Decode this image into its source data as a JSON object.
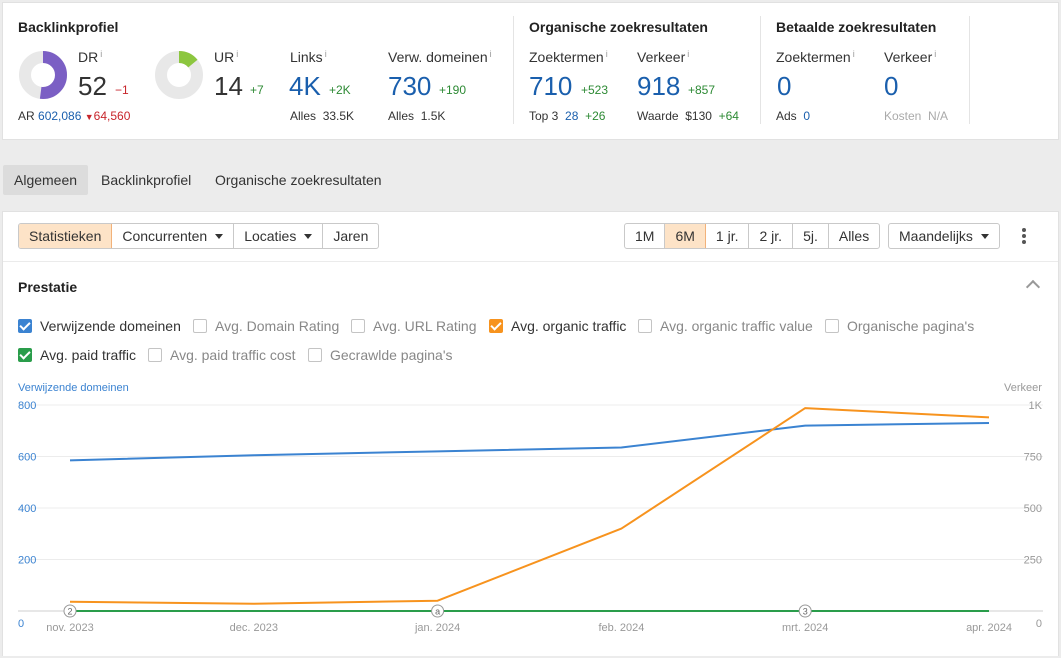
{
  "backlink": {
    "title": "Backlinkprofiel",
    "dr": {
      "label": "DR",
      "info": "i",
      "value": "52",
      "delta": "−1",
      "fraction": 0.52
    },
    "ar": {
      "label": "AR",
      "value": "602,086",
      "delta": "64,560"
    },
    "ur": {
      "label": "UR",
      "info": "i",
      "value": "14",
      "delta": "+7",
      "fraction": 0.14
    },
    "links": {
      "label": "Links",
      "info": "i",
      "value": "4K",
      "delta": "+2K",
      "sub_label": "Alles",
      "sub_value": "33.5K"
    },
    "domains": {
      "label": "Verw. domeinen",
      "info": "i",
      "value": "730",
      "delta": "+190",
      "sub_label": "Alles",
      "sub_value": "1.5K"
    }
  },
  "organic": {
    "title": "Organische zoekresultaten",
    "keywords": {
      "label": "Zoektermen",
      "info": "i",
      "value": "710",
      "delta": "+523",
      "sub_label": "Top 3",
      "sub_value": "28",
      "sub_delta": "+26"
    },
    "traffic": {
      "label": "Verkeer",
      "info": "i",
      "value": "918",
      "delta": "+857",
      "sub_label": "Waarde",
      "sub_value": "$130",
      "sub_delta": "+64"
    }
  },
  "paid": {
    "title": "Betaalde zoekresultaten",
    "keywords": {
      "label": "Zoektermen",
      "info": "i",
      "value": "0",
      "sub_label": "Ads",
      "sub_value": "0"
    },
    "traffic": {
      "label": "Verkeer",
      "info": "i",
      "value": "0",
      "sub_label": "Kosten",
      "sub_value": "N/A"
    }
  },
  "tabs": [
    "Algemeen",
    "Backlinkprofiel",
    "Organische zoekresultaten"
  ],
  "view_buttons": [
    "Statistieken",
    "Concurrenten",
    "Locaties",
    "Jaren"
  ],
  "range_buttons": [
    "1M",
    "6M",
    "1 jr.",
    "2 jr.",
    "5j.",
    "Alles"
  ],
  "interval": "Maandelijks",
  "section_title": "Prestatie",
  "checkboxes": {
    "ref_domains": "Verwijzende domeinen",
    "avg_dr": "Avg. Domain Rating",
    "avg_ur": "Avg. URL Rating",
    "avg_organic": "Avg. organic traffic",
    "avg_organic_value": "Avg. organic traffic value",
    "organic_pages": "Organische pagina's",
    "avg_paid": "Avg. paid traffic",
    "avg_paid_cost": "Avg. paid traffic cost",
    "crawled": "Gecrawlde pagina's"
  },
  "colors": {
    "blue": "#3b83d1",
    "orange": "#f7931e",
    "green": "#2a9d4b",
    "dr_donut": "#7b5fc4",
    "ur_donut": "#8cc63f"
  },
  "chart_data": {
    "type": "line",
    "left_axis_title": "Verwijzende domeinen",
    "right_axis_title": "Verkeer",
    "x": [
      "nov. 2023",
      "dec. 2023",
      "jan. 2024",
      "feb. 2024",
      "mrt. 2024",
      "apr. 2024"
    ],
    "left_ticks": [
      "0",
      "200",
      "400",
      "600",
      "800"
    ],
    "right_ticks": [
      "0",
      "250",
      "500",
      "750",
      "1K"
    ],
    "ylim_left": [
      0,
      800
    ],
    "ylim_right": [
      0,
      1000
    ],
    "grid": true,
    "series": [
      {
        "name": "Verwijzende domeinen",
        "axis": "left",
        "color": "#3b83d1",
        "points": [
          [
            "nov. 2023",
            585
          ],
          [
            "dec. 2023",
            605
          ],
          [
            "jan. 2024",
            620
          ],
          [
            "feb. 2024",
            635
          ],
          [
            "mrt. 2024",
            720
          ],
          [
            "apr. 2024",
            730
          ]
        ]
      },
      {
        "name": "Avg. organic traffic",
        "axis": "right",
        "color": "#f7931e",
        "points": [
          [
            "nov. 2023",
            45
          ],
          [
            "dec. 2023",
            35
          ],
          [
            "jan. 2024",
            50
          ],
          [
            "feb. 2024",
            400
          ],
          [
            "mrt. 2024",
            985
          ],
          [
            "apr. 2024",
            940
          ]
        ]
      },
      {
        "name": "Avg. paid traffic",
        "axis": "right",
        "color": "#2a9d4b",
        "points": [
          [
            "nov. 2023",
            0
          ],
          [
            "dec. 2023",
            0
          ],
          [
            "jan. 2024",
            0
          ],
          [
            "feb. 2024",
            0
          ],
          [
            "mrt. 2024",
            0
          ],
          [
            "apr. 2024",
            0
          ]
        ]
      }
    ],
    "annotations": [
      {
        "x": "nov. 2023",
        "label": "2"
      },
      {
        "x": "jan. 2024",
        "label": "a"
      },
      {
        "x": "mrt. 2024",
        "label": "3"
      }
    ]
  }
}
